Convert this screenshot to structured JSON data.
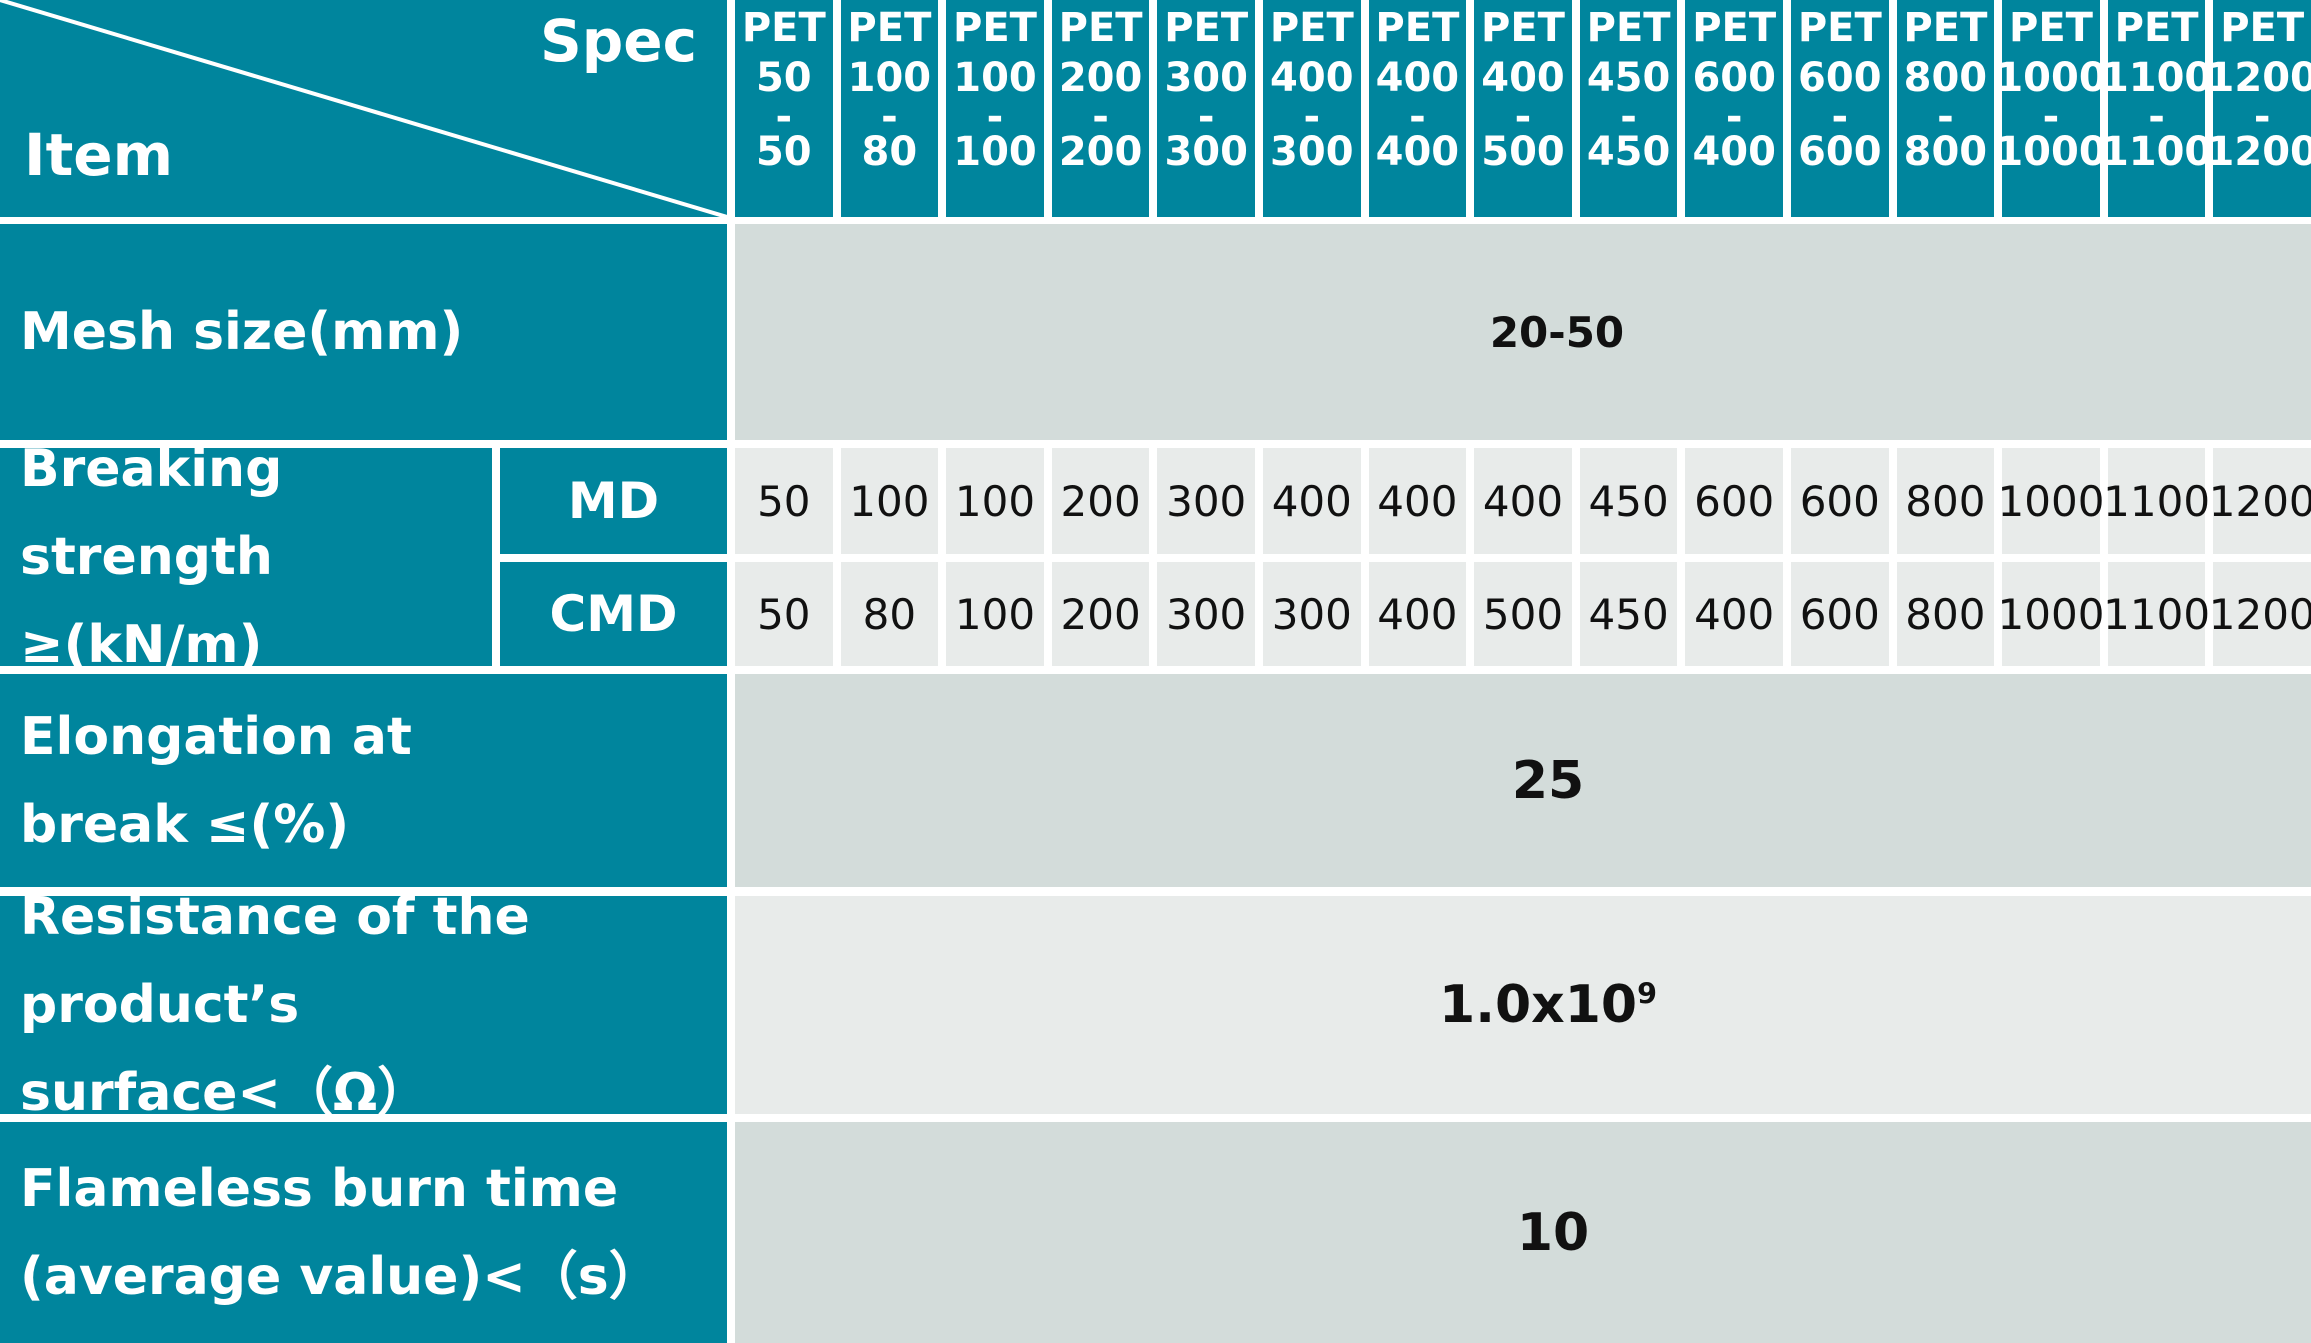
{
  "header": {
    "spec_label": "Spec",
    "item_label": "Item",
    "columns": [
      {
        "pet": "PET",
        "md": "50",
        "dash": "-",
        "cmd": "50"
      },
      {
        "pet": "PET",
        "md": "100",
        "dash": "-",
        "cmd": "80"
      },
      {
        "pet": "PET",
        "md": "100",
        "dash": "-",
        "cmd": "100"
      },
      {
        "pet": "PET",
        "md": "200",
        "dash": "-",
        "cmd": "200"
      },
      {
        "pet": "PET",
        "md": "300",
        "dash": "-",
        "cmd": "300"
      },
      {
        "pet": "PET",
        "md": "400",
        "dash": "-",
        "cmd": "300"
      },
      {
        "pet": "PET",
        "md": "400",
        "dash": "-",
        "cmd": "400"
      },
      {
        "pet": "PET",
        "md": "400",
        "dash": "-",
        "cmd": "500"
      },
      {
        "pet": "PET",
        "md": "450",
        "dash": "-",
        "cmd": "450"
      },
      {
        "pet": "PET",
        "md": "600",
        "dash": "-",
        "cmd": "400"
      },
      {
        "pet": "PET",
        "md": "600",
        "dash": "-",
        "cmd": "600"
      },
      {
        "pet": "PET",
        "md": "800",
        "dash": "-",
        "cmd": "800"
      },
      {
        "pet": "PET",
        "md": "1000",
        "dash": "-",
        "cmd": "1000"
      },
      {
        "pet": "PET",
        "md": "1100",
        "dash": "-",
        "cmd": "1100"
      },
      {
        "pet": "PET",
        "md": "1200",
        "dash": "-",
        "cmd": "1200"
      }
    ]
  },
  "rows": {
    "mesh": {
      "label": "Mesh size(mm)",
      "value": "20-50"
    },
    "breaking": {
      "label_line1": "Breaking strength",
      "label_line2": "≥(kN/m)",
      "md_label": "MD",
      "cmd_label": "CMD",
      "md_values": [
        "50",
        "100",
        "100",
        "200",
        "300",
        "400",
        "400",
        "400",
        "450",
        "600",
        "600",
        "800",
        "1000",
        "1100",
        "1200"
      ],
      "cmd_values": [
        "50",
        "80",
        "100",
        "200",
        "300",
        "300",
        "400",
        "500",
        "450",
        "400",
        "600",
        "800",
        "1000",
        "1100",
        "1200"
      ]
    },
    "elongation": {
      "label_line1": "Elongation at",
      "label_line2": "break ≤(%)",
      "value": "25"
    },
    "resistance": {
      "label_line1": "Resistance of the product’s",
      "label_line2": "surface<（Ω）",
      "value_base": "1.0x10",
      "value_exp": "9"
    },
    "burn": {
      "label_line1": "Flameless burn time",
      "label_line2": "(average value)<（s）",
      "value": "10"
    }
  },
  "colors": {
    "teal": "#00859d",
    "grey": "#d3dcda",
    "light": "#e8ebea",
    "white": "#ffffff"
  }
}
